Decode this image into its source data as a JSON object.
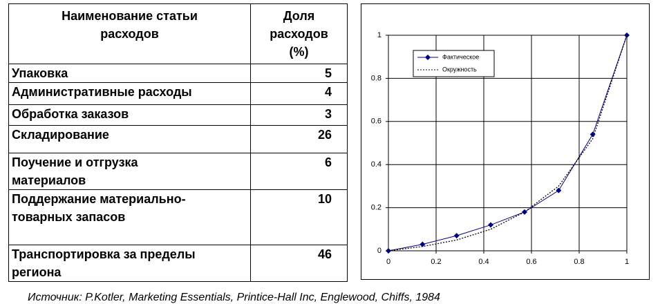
{
  "table": {
    "header": [
      "Наименование статьи расходов",
      "Доля расходов (%)"
    ],
    "rows": [
      [
        "Упаковка",
        5
      ],
      [
        "Административные расходы",
        4
      ],
      [
        "Обработка заказов",
        3
      ],
      [
        "Складирование",
        26
      ],
      [
        "Поучение и отгрузка материалов",
        6
      ],
      [
        "Поддержание материально-товарных запасов",
        10
      ],
      [
        "Транспортировка за пределы региона",
        46
      ]
    ]
  },
  "chart_data": {
    "type": "line",
    "x": [
      0,
      0.143,
      0.286,
      0.429,
      0.571,
      0.714,
      0.857,
      1
    ],
    "series": [
      {
        "name": "Фактическое",
        "color": "#000080",
        "style": "solid",
        "markers": true,
        "values": [
          0,
          0.03,
          0.07,
          0.12,
          0.18,
          0.28,
          0.54,
          1
        ]
      },
      {
        "name": "Окружность",
        "color": "#000000",
        "style": "dotted",
        "markers": false,
        "values": [
          0,
          0.02,
          0.05,
          0.1,
          0.18,
          0.3,
          0.52,
          1
        ]
      }
    ],
    "xlim": [
      0,
      1
    ],
    "xticks": [
      0,
      0.2,
      0.4,
      0.6,
      0.8,
      1
    ],
    "ylim": [
      0,
      1
    ],
    "yticks": [
      0,
      0.2,
      0.4,
      0.6,
      0.8,
      1
    ],
    "grid": true,
    "legend": "upper-left"
  },
  "source": "Источник: P.Kotler, Marketing Essentials, Printice-Hall Inc, Englewood, Chiffs, 1984"
}
